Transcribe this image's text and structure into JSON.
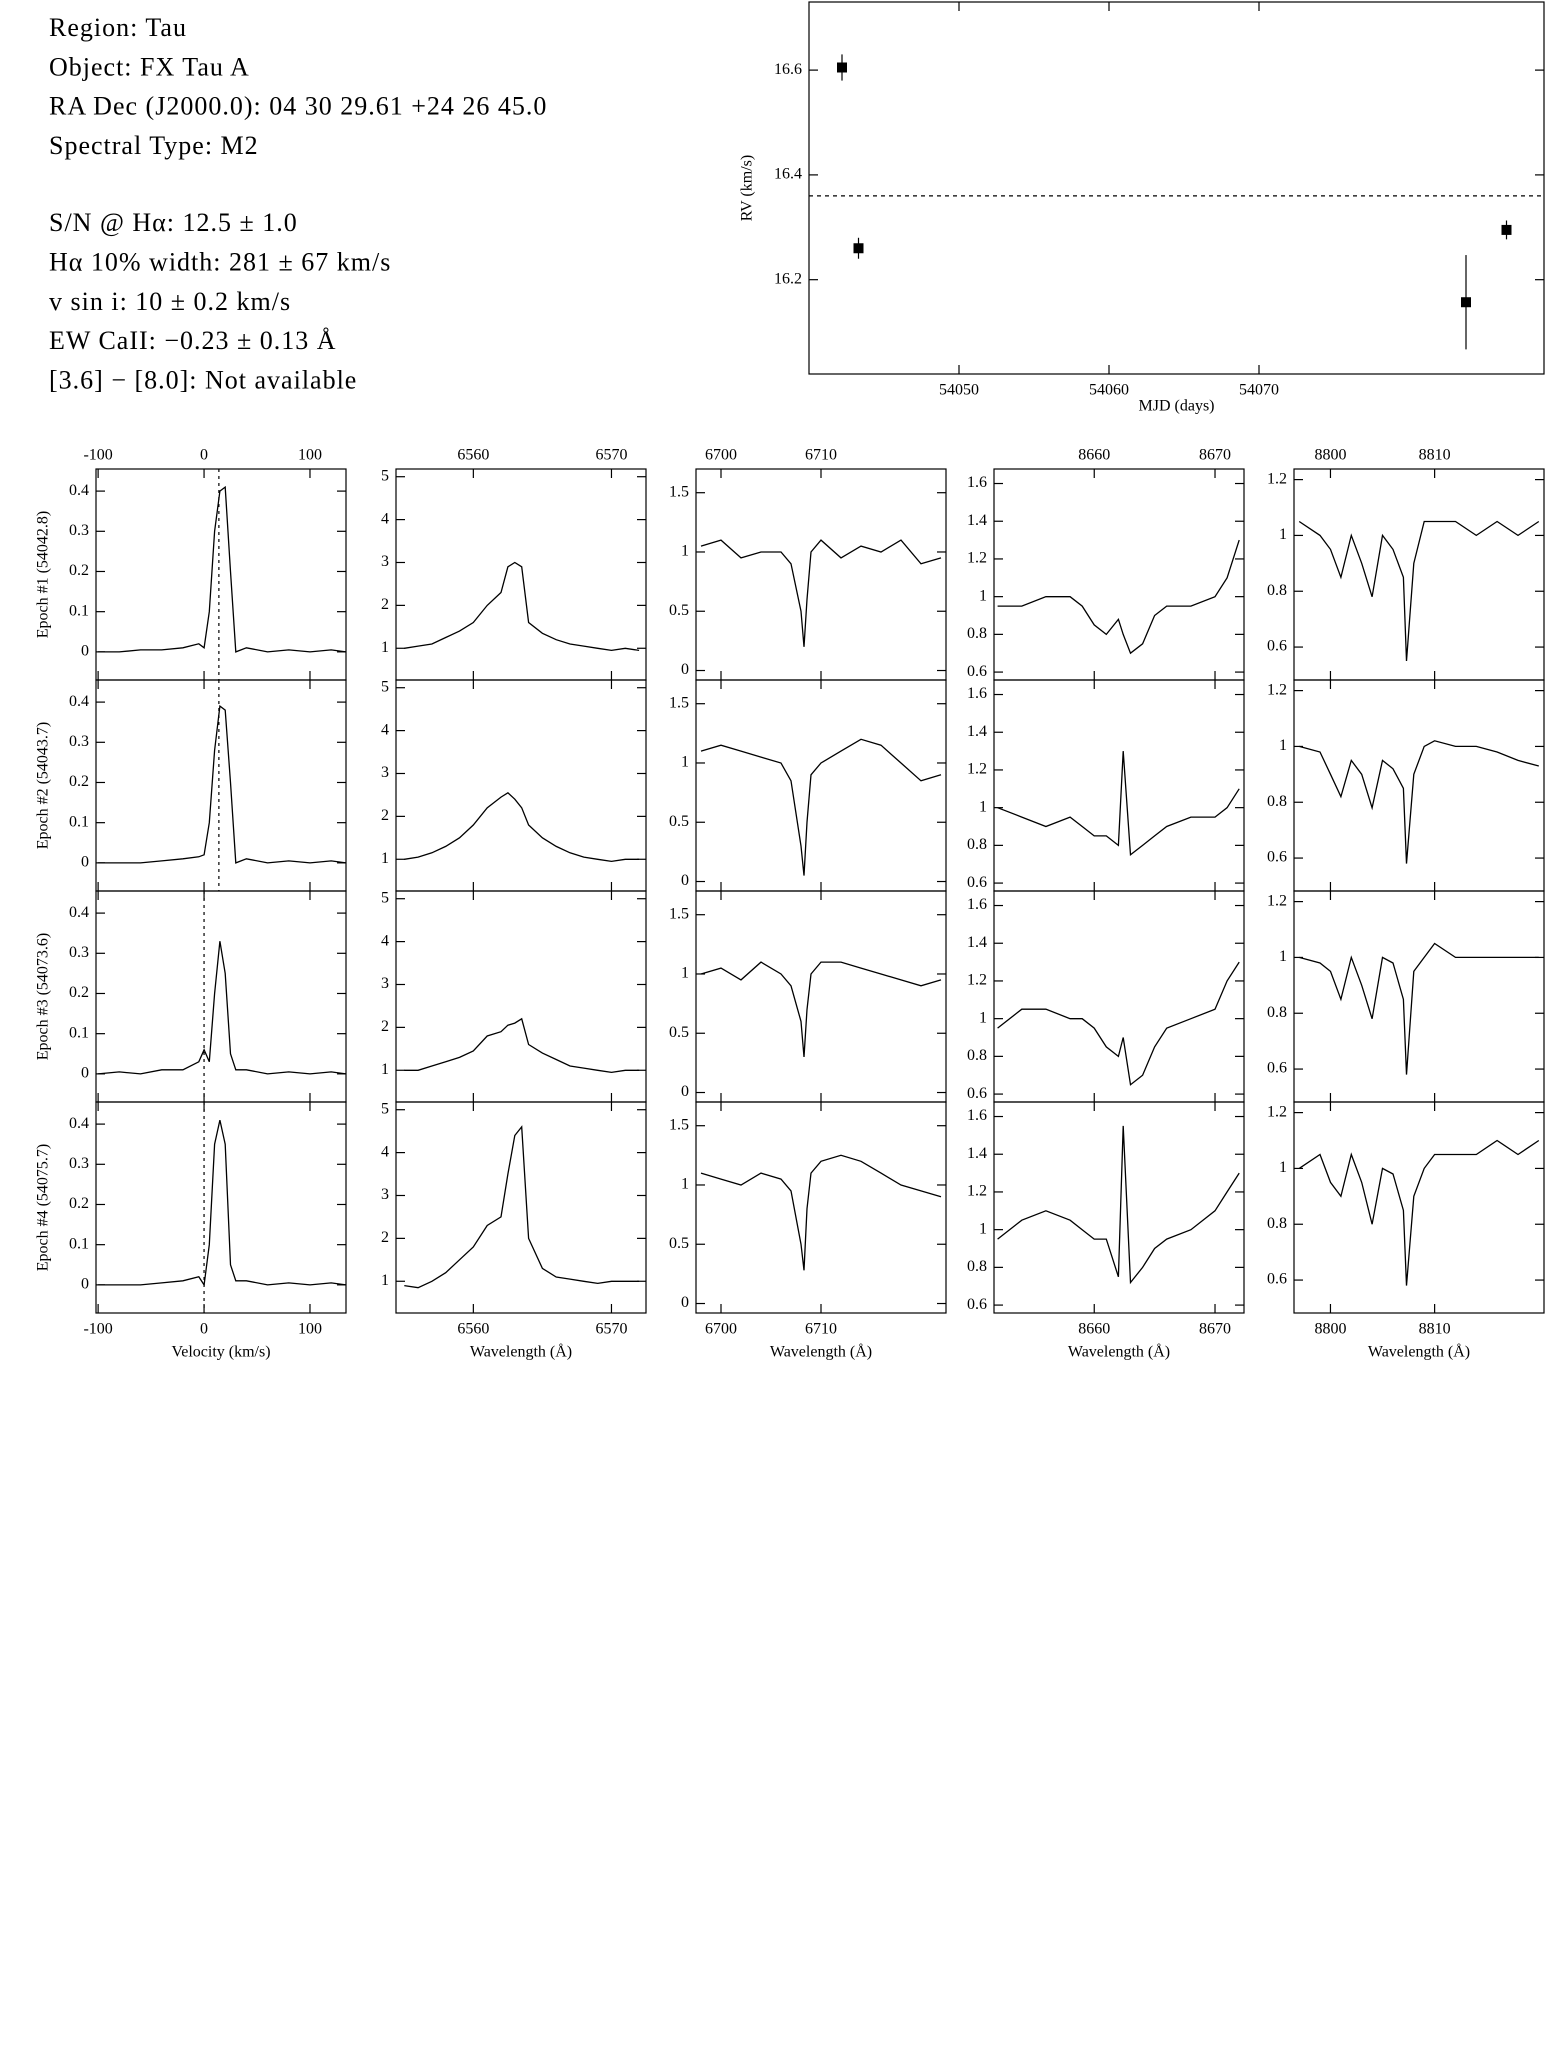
{
  "header": {
    "lines": [
      "Region: Tau",
      "Object: FX Tau A",
      "RA Dec (J2000.0): 04 30 29.61 +24 26 45.0",
      "Spectral Type: M2",
      "S/N @ Hα: 12.5 ± 1.0",
      "Hα 10% width: 281 ± 67 km/s",
      "v sin i: 10 ± 0.2 km/s",
      "EW CaII: −0.23 ± 0.13 Å",
      "[3.6] − [8.0]: Not available"
    ]
  },
  "chart_data": [
    {
      "type": "scatter",
      "xlabel": "MJD (days)",
      "ylabel": "RV (km/s)",
      "x": [
        54042.2,
        54043.3,
        54083.8,
        54086.5
      ],
      "values": [
        16.605,
        16.26,
        16.157,
        16.295
      ],
      "errors": [
        0.025,
        0.02,
        0.09,
        0.018
      ],
      "mean": 16.36,
      "color": "#000000",
      "xlim": [
        54040,
        54089
      ],
      "ylim": [
        16.02,
        16.73
      ],
      "xticks": [
        54050,
        54060,
        54070
      ],
      "yticks": [
        16.2,
        16.4,
        16.6
      ]
    },
    {
      "type": "line",
      "ylabel": "Epoch #1 (54042.8)",
      "ref_x": 14,
      "x": [
        -100,
        -80,
        -60,
        -40,
        -20,
        -5,
        0,
        5,
        10,
        15,
        20,
        25,
        30,
        40,
        60,
        80,
        100,
        120,
        134
      ],
      "values": [
        0,
        0,
        0.005,
        0.005,
        0.01,
        0.02,
        0.01,
        0.1,
        0.3,
        0.4,
        0.41,
        0.2,
        0,
        0.01,
        0,
        0.005,
        0,
        0.005,
        0
      ],
      "xlim": [
        -102,
        134
      ],
      "ylim": [
        -0.07,
        0.455
      ],
      "xticks": [
        -100,
        0,
        100
      ],
      "yticks": [
        0,
        0.1,
        0.2,
        0.3,
        0.4
      ]
    },
    {
      "type": "line",
      "x": [
        6555,
        6556,
        6557,
        6558,
        6559,
        6560,
        6561,
        6562,
        6562.5,
        6563,
        6563.5,
        6564,
        6565,
        6566,
        6567,
        6568,
        6569,
        6570,
        6571,
        6572
      ],
      "values": [
        1.0,
        1.05,
        1.1,
        1.25,
        1.4,
        1.6,
        2.0,
        2.3,
        2.9,
        3.0,
        2.9,
        1.6,
        1.35,
        1.2,
        1.1,
        1.05,
        1.0,
        0.95,
        1.0,
        0.95
      ],
      "xlim": [
        6554.4,
        6572.5
      ],
      "ylim": [
        0.26,
        5.18
      ],
      "xticks": [
        6560,
        6570
      ],
      "yticks": [
        1,
        2,
        3,
        4,
        5
      ]
    },
    {
      "type": "line",
      "x": [
        6698,
        6700,
        6702,
        6704,
        6706,
        6707,
        6708,
        6708.3,
        6708.6,
        6709,
        6710,
        6712,
        6714,
        6716,
        6718,
        6720,
        6722
      ],
      "values": [
        1.05,
        1.1,
        0.95,
        1.0,
        1.0,
        0.9,
        0.5,
        0.2,
        0.6,
        1.0,
        1.1,
        0.95,
        1.05,
        1.0,
        1.1,
        0.9,
        0.95
      ],
      "xlim": [
        6697.5,
        6722.5
      ],
      "ylim": [
        -0.08,
        1.7
      ],
      "xticks": [
        6700,
        6710
      ],
      "yticks": [
        0,
        0.5,
        1,
        1.5
      ]
    },
    {
      "type": "line",
      "x": [
        8652,
        8654,
        8656,
        8658,
        8659,
        8660,
        8661,
        8662,
        8662.4,
        8663,
        8664,
        8665,
        8666,
        8668,
        8670,
        8671,
        8672
      ],
      "values": [
        0.95,
        0.95,
        1.0,
        1.0,
        0.95,
        0.85,
        0.8,
        0.88,
        0.8,
        0.7,
        0.75,
        0.9,
        0.95,
        0.95,
        1.0,
        1.1,
        1.3
      ],
      "xlim": [
        8651.7,
        8672.4
      ],
      "ylim": [
        0.558,
        1.677
      ],
      "xticks": [
        8660,
        8670
      ],
      "yticks": [
        0.6,
        0.8,
        1,
        1.2,
        1.4,
        1.6
      ]
    },
    {
      "type": "line",
      "x": [
        8797,
        8799,
        8800,
        8801,
        8802,
        8803,
        8804,
        8805,
        8806,
        8807,
        8807.3,
        8808,
        8809,
        8810,
        8812,
        8814,
        8816,
        8818,
        8820
      ],
      "values": [
        1.05,
        1.0,
        0.95,
        0.85,
        1.0,
        0.9,
        0.78,
        1.0,
        0.95,
        0.85,
        0.55,
        0.9,
        1.05,
        1.05,
        1.05,
        1.0,
        1.05,
        1.0,
        1.05
      ],
      "xlim": [
        8796.5,
        8820.5
      ],
      "ylim": [
        0.482,
        1.238
      ],
      "xticks": [
        8800,
        8810
      ],
      "yticks": [
        0.6,
        0.8,
        1,
        1.2
      ]
    },
    {
      "type": "line",
      "ylabel": "Epoch #2 (54043.7)",
      "ref_x": 14,
      "x": [
        -100,
        -80,
        -60,
        -40,
        -20,
        -5,
        0,
        5,
        10,
        15,
        20,
        25,
        30,
        40,
        60,
        80,
        100,
        120,
        134
      ],
      "values": [
        0,
        0,
        0,
        0.005,
        0.01,
        0.015,
        0.02,
        0.1,
        0.28,
        0.39,
        0.38,
        0.2,
        0,
        0.01,
        0,
        0.005,
        0,
        0.005,
        0
      ],
      "xlim": [
        -102,
        134
      ],
      "ylim": [
        -0.07,
        0.455
      ],
      "xticks": [
        -100,
        0,
        100
      ],
      "yticks": [
        0,
        0.1,
        0.2,
        0.3,
        0.4
      ]
    },
    {
      "type": "line",
      "x": [
        6555,
        6556,
        6557,
        6558,
        6559,
        6560,
        6561,
        6562,
        6562.5,
        6563,
        6563.5,
        6564,
        6565,
        6566,
        6567,
        6568,
        6569,
        6570,
        6571,
        6572
      ],
      "values": [
        1.0,
        1.05,
        1.15,
        1.3,
        1.5,
        1.8,
        2.2,
        2.45,
        2.55,
        2.4,
        2.2,
        1.8,
        1.5,
        1.3,
        1.15,
        1.05,
        1.0,
        0.95,
        1.0,
        1.0
      ],
      "xlim": [
        6554.4,
        6572.5
      ],
      "ylim": [
        0.26,
        5.18
      ],
      "xticks": [
        6560,
        6570
      ],
      "yticks": [
        1,
        2,
        3,
        4,
        5
      ]
    },
    {
      "type": "line",
      "x": [
        6698,
        6700,
        6702,
        6704,
        6706,
        6707,
        6708,
        6708.3,
        6708.6,
        6709,
        6710,
        6712,
        6714,
        6716,
        6718,
        6720,
        6722
      ],
      "values": [
        1.1,
        1.15,
        1.1,
        1.05,
        1.0,
        0.85,
        0.3,
        0.05,
        0.5,
        0.9,
        1.0,
        1.1,
        1.2,
        1.15,
        1.0,
        0.85,
        0.9
      ],
      "xlim": [
        6697.5,
        6722.5
      ],
      "ylim": [
        -0.08,
        1.7
      ],
      "xticks": [
        6700,
        6710
      ],
      "yticks": [
        0,
        0.5,
        1,
        1.5
      ]
    },
    {
      "type": "line",
      "x": [
        8652,
        8654,
        8656,
        8658,
        8659,
        8660,
        8661,
        8662,
        8662.4,
        8663,
        8664,
        8665,
        8666,
        8668,
        8670,
        8671,
        8672
      ],
      "values": [
        1.0,
        0.95,
        0.9,
        0.95,
        0.9,
        0.85,
        0.85,
        0.8,
        1.3,
        0.75,
        0.8,
        0.85,
        0.9,
        0.95,
        0.95,
        1.0,
        1.1
      ],
      "xlim": [
        8651.7,
        8672.4
      ],
      "ylim": [
        0.558,
        1.677
      ],
      "xticks": [
        8660,
        8670
      ],
      "yticks": [
        0.6,
        0.8,
        1,
        1.2,
        1.4,
        1.6
      ]
    },
    {
      "type": "line",
      "x": [
        8797,
        8799,
        8800,
        8801,
        8802,
        8803,
        8804,
        8805,
        8806,
        8807,
        8807.3,
        8808,
        8809,
        8810,
        8812,
        8814,
        8816,
        8818,
        8820
      ],
      "values": [
        1.0,
        0.98,
        0.9,
        0.82,
        0.95,
        0.9,
        0.78,
        0.95,
        0.92,
        0.85,
        0.58,
        0.9,
        1.0,
        1.02,
        1.0,
        1.0,
        0.98,
        0.95,
        0.93
      ],
      "xlim": [
        8796.5,
        8820.5
      ],
      "ylim": [
        0.482,
        1.238
      ],
      "xticks": [
        8800,
        8810
      ],
      "yticks": [
        0.6,
        0.8,
        1,
        1.2
      ]
    },
    {
      "type": "line",
      "ylabel": "Epoch #3 (54073.6)",
      "ref_x": 0,
      "x": [
        -100,
        -80,
        -60,
        -40,
        -20,
        -5,
        0,
        5,
        10,
        15,
        20,
        25,
        30,
        40,
        60,
        80,
        100,
        120,
        134
      ],
      "values": [
        0,
        0.005,
        0,
        0.01,
        0.01,
        0.03,
        0.06,
        0.03,
        0.2,
        0.33,
        0.25,
        0.05,
        0.01,
        0.01,
        0,
        0.005,
        0,
        0.005,
        0
      ],
      "xlim": [
        -102,
        134
      ],
      "ylim": [
        -0.07,
        0.455
      ],
      "xticks": [
        -100,
        0,
        100
      ],
      "yticks": [
        0,
        0.1,
        0.2,
        0.3,
        0.4
      ]
    },
    {
      "type": "line",
      "x": [
        6555,
        6556,
        6557,
        6558,
        6559,
        6560,
        6561,
        6562,
        6562.5,
        6563,
        6563.5,
        6564,
        6565,
        6566,
        6567,
        6568,
        6569,
        6570,
        6571,
        6572
      ],
      "values": [
        1.0,
        1.0,
        1.1,
        1.2,
        1.3,
        1.45,
        1.8,
        1.9,
        2.05,
        2.1,
        2.2,
        1.6,
        1.4,
        1.25,
        1.1,
        1.05,
        1.0,
        0.95,
        1.0,
        1.0
      ],
      "xlim": [
        6554.4,
        6572.5
      ],
      "ylim": [
        0.26,
        5.18
      ],
      "xticks": [
        6560,
        6570
      ],
      "yticks": [
        1,
        2,
        3,
        4,
        5
      ]
    },
    {
      "type": "line",
      "x": [
        6698,
        6700,
        6702,
        6704,
        6706,
        6707,
        6708,
        6708.3,
        6708.6,
        6709,
        6710,
        6712,
        6714,
        6716,
        6718,
        6720,
        6722
      ],
      "values": [
        1.0,
        1.05,
        0.95,
        1.1,
        1.0,
        0.9,
        0.6,
        0.3,
        0.7,
        1.0,
        1.1,
        1.1,
        1.05,
        1.0,
        0.95,
        0.9,
        0.95
      ],
      "xlim": [
        6697.5,
        6722.5
      ],
      "ylim": [
        -0.08,
        1.7
      ],
      "xticks": [
        6700,
        6710
      ],
      "yticks": [
        0,
        0.5,
        1,
        1.5
      ]
    },
    {
      "type": "line",
      "x": [
        8652,
        8654,
        8656,
        8658,
        8659,
        8660,
        8661,
        8662,
        8662.4,
        8663,
        8664,
        8665,
        8666,
        8668,
        8670,
        8671,
        8672
      ],
      "values": [
        0.95,
        1.05,
        1.05,
        1.0,
        1.0,
        0.95,
        0.85,
        0.8,
        0.9,
        0.65,
        0.7,
        0.85,
        0.95,
        1.0,
        1.05,
        1.2,
        1.3
      ],
      "xlim": [
        8651.7,
        8672.4
      ],
      "ylim": [
        0.558,
        1.677
      ],
      "xticks": [
        8660,
        8670
      ],
      "yticks": [
        0.6,
        0.8,
        1,
        1.2,
        1.4,
        1.6
      ]
    },
    {
      "type": "line",
      "x": [
        8797,
        8799,
        8800,
        8801,
        8802,
        8803,
        8804,
        8805,
        8806,
        8807,
        8807.3,
        8808,
        8809,
        8810,
        8812,
        8814,
        8816,
        8818,
        8820
      ],
      "values": [
        1.0,
        0.98,
        0.95,
        0.85,
        1.0,
        0.9,
        0.78,
        1.0,
        0.98,
        0.85,
        0.58,
        0.95,
        1.0,
        1.05,
        1.0,
        1.0,
        1.0,
        1.0,
        1.0
      ],
      "xlim": [
        8796.5,
        8820.5
      ],
      "ylim": [
        0.482,
        1.238
      ],
      "xticks": [
        8800,
        8810
      ],
      "yticks": [
        0.6,
        0.8,
        1,
        1.2
      ]
    },
    {
      "type": "line",
      "ylabel": "Epoch #4 (54075.7)",
      "xlabel": "Velocity (km/s)",
      "ref_x": 0,
      "x": [
        -100,
        -80,
        -60,
        -40,
        -20,
        -5,
        0,
        5,
        10,
        15,
        20,
        25,
        30,
        40,
        60,
        80,
        100,
        120,
        134
      ],
      "values": [
        0,
        0,
        0,
        0.005,
        0.01,
        0.02,
        0,
        0.1,
        0.35,
        0.41,
        0.35,
        0.05,
        0.01,
        0.01,
        0,
        0.005,
        0,
        0.005,
        0
      ],
      "xlim": [
        -102,
        134
      ],
      "ylim": [
        -0.07,
        0.455
      ],
      "xticks": [
        -100,
        0,
        100
      ],
      "yticks": [
        0,
        0.1,
        0.2,
        0.3,
        0.4
      ]
    },
    {
      "type": "line",
      "xlabel": "Wavelength (Å)",
      "x": [
        6555,
        6556,
        6557,
        6558,
        6559,
        6560,
        6561,
        6562,
        6562.5,
        6563,
        6563.5,
        6564,
        6565,
        6566,
        6567,
        6568,
        6569,
        6570,
        6571,
        6572
      ],
      "values": [
        0.9,
        0.85,
        1.0,
        1.2,
        1.5,
        1.8,
        2.3,
        2.5,
        3.5,
        4.4,
        4.6,
        2.0,
        1.3,
        1.1,
        1.05,
        1.0,
        0.95,
        1.0,
        1.0,
        1.0
      ],
      "xlim": [
        6554.4,
        6572.5
      ],
      "ylim": [
        0.26,
        5.18
      ],
      "xticks": [
        6560,
        6570
      ],
      "yticks": [
        1,
        2,
        3,
        4,
        5
      ]
    },
    {
      "type": "line",
      "xlabel": "Wavelength (Å)",
      "x": [
        6698,
        6700,
        6702,
        6704,
        6706,
        6707,
        6708,
        6708.3,
        6708.6,
        6709,
        6710,
        6712,
        6714,
        6716,
        6718,
        6720,
        6722
      ],
      "values": [
        1.1,
        1.05,
        1.0,
        1.1,
        1.05,
        0.95,
        0.5,
        0.28,
        0.8,
        1.1,
        1.2,
        1.25,
        1.2,
        1.1,
        1.0,
        0.95,
        0.9
      ],
      "xlim": [
        6697.5,
        6722.5
      ],
      "ylim": [
        -0.08,
        1.7
      ],
      "xticks": [
        6700,
        6710
      ],
      "yticks": [
        0,
        0.5,
        1,
        1.5
      ]
    },
    {
      "type": "line",
      "xlabel": "Wavelength (Å)",
      "x": [
        8652,
        8654,
        8656,
        8658,
        8659,
        8660,
        8661,
        8662,
        8662.4,
        8663,
        8664,
        8665,
        8666,
        8668,
        8670,
        8671,
        8672
      ],
      "values": [
        0.95,
        1.05,
        1.1,
        1.05,
        1.0,
        0.95,
        0.95,
        0.75,
        1.55,
        0.72,
        0.8,
        0.9,
        0.95,
        1.0,
        1.1,
        1.2,
        1.3
      ],
      "xlim": [
        8651.7,
        8672.4
      ],
      "ylim": [
        0.558,
        1.677
      ],
      "xticks": [
        8660,
        8670
      ],
      "yticks": [
        0.6,
        0.8,
        1,
        1.2,
        1.4,
        1.6
      ]
    },
    {
      "type": "line",
      "xlabel": "Wavelength (Å)",
      "x": [
        8797,
        8799,
        8800,
        8801,
        8802,
        8803,
        8804,
        8805,
        8806,
        8807,
        8807.3,
        8808,
        8809,
        8810,
        8812,
        8814,
        8816,
        8818,
        8820
      ],
      "values": [
        1.0,
        1.05,
        0.95,
        0.9,
        1.05,
        0.95,
        0.8,
        1.0,
        0.98,
        0.85,
        0.58,
        0.9,
        1.0,
        1.05,
        1.05,
        1.05,
        1.1,
        1.05,
        1.1
      ],
      "xlim": [
        8796.5,
        8820.5
      ],
      "ylim": [
        0.482,
        1.238
      ],
      "xticks": [
        8800,
        8810
      ],
      "yticks": [
        0.6,
        0.8,
        1,
        1.2
      ]
    }
  ]
}
